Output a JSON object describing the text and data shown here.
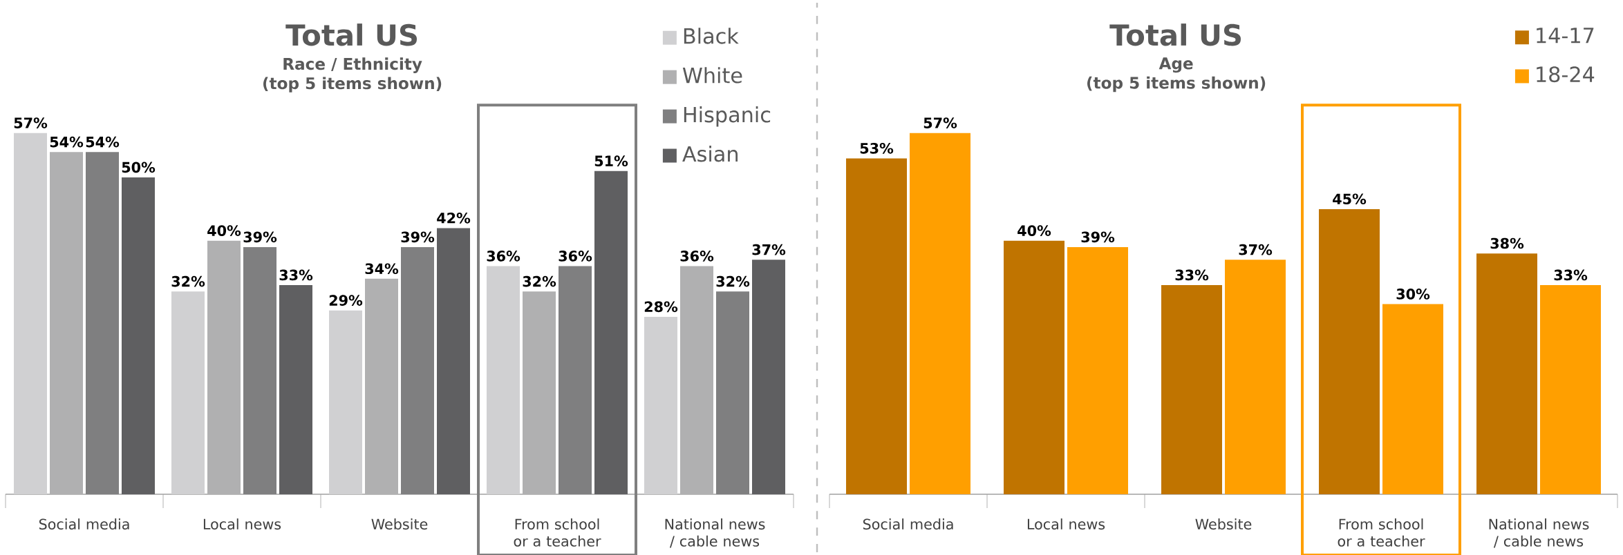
{
  "chart_data": [
    {
      "type": "bar",
      "title": "Total US",
      "subtitle": "Race / Ethnicity",
      "annotations": [
        "(top 5 items shown)"
      ],
      "categories": [
        "Social media",
        "Local news",
        "Website",
        "From school or a teacher",
        "National news / cable news"
      ],
      "series": [
        {
          "name": "Black",
          "color": "#d0d0d2",
          "values": [
            57,
            32,
            29,
            36,
            28
          ],
          "value_labels": [
            "57%",
            "32%",
            "29%",
            "36%",
            "28%"
          ]
        },
        {
          "name": "White",
          "color": "#b0b0b1",
          "values": [
            54,
            40,
            34,
            32,
            36
          ],
          "value_labels": [
            "54%",
            "40%",
            "34%",
            "32%",
            "36%"
          ]
        },
        {
          "name": "Hispanic",
          "color": "#7f7f80",
          "values": [
            54,
            39,
            39,
            36,
            32
          ],
          "value_labels": [
            "54%",
            "39%",
            "39%",
            "36%",
            "32%"
          ]
        },
        {
          "name": "Asian",
          "color": "#5f5f61",
          "values": [
            50,
            33,
            42,
            51,
            37
          ],
          "value_labels": [
            "50%",
            "33%",
            "42%",
            "51%",
            "37%"
          ]
        }
      ],
      "legend": "top right"
    },
    {
      "type": "bar",
      "title": "Total US",
      "subtitle": "Age",
      "annotations": [
        "(top 5 items shown)"
      ],
      "categories": [
        "Social media",
        "Local news",
        "Website",
        "From school or a teacher",
        "National news / cable news"
      ],
      "series": [
        {
          "name": "14-17",
          "color": "#c07400",
          "values": [
            53,
            40,
            33,
            45,
            38
          ],
          "value_labels": [
            "53%",
            "40%",
            "33%",
            "45%",
            "38%"
          ]
        },
        {
          "name": "18-24",
          "color": "#ff9f00",
          "values": [
            57,
            39,
            37,
            30,
            33
          ],
          "value_labels": [
            "57%",
            "39%",
            "37%",
            "30%",
            "33%"
          ]
        }
      ],
      "legend": "top right"
    }
  ]
}
